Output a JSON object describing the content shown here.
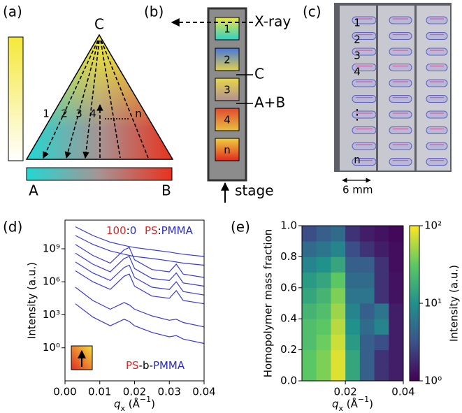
{
  "panel_a": {
    "label": "(a)",
    "vertex_top": "C",
    "vertex_left": "A",
    "vertex_right": "B",
    "paths": [
      "1",
      "2",
      "3",
      "4",
      "n"
    ]
  },
  "panel_b": {
    "label": "(b)",
    "beam": "X-ray",
    "cells": [
      "1",
      "2",
      "3",
      "4",
      "n"
    ],
    "callouts": [
      "C",
      "A+B"
    ],
    "stage": "stage"
  },
  "panel_c": {
    "label": "(c)",
    "rows": [
      "1",
      "2",
      "3",
      "4",
      "⋮",
      "n"
    ],
    "scale": "6 mm"
  },
  "chart_data": [
    {
      "type": "line",
      "label": "(d)",
      "x": [
        0.003,
        0.008,
        0.013,
        0.017,
        0.0185,
        0.02,
        0.025,
        0.03,
        0.032,
        0.034,
        0.04
      ],
      "xlim": [
        0,
        0.04
      ],
      "xticks": [
        {
          "value": 0,
          "label": "0.00"
        },
        {
          "value": 0.01,
          "label": "0.01"
        },
        {
          "value": 0.02,
          "label": "0.02"
        },
        {
          "value": 0.03,
          "label": "0.03"
        },
        {
          "value": 0.04,
          "label": "0.04"
        }
      ],
      "ylim": [
        0.001,
        400000000000
      ],
      "yticks": [
        {
          "value": 1,
          "label": "10⁰"
        },
        {
          "value": 1000,
          "label": "10³"
        },
        {
          "value": 1000000,
          "label": "10⁶"
        },
        {
          "value": 1000000000,
          "label": "10⁹"
        }
      ],
      "log_y": true,
      "ylabel": "Intensity (a.u.)",
      "xlabel": [
        "q",
        "x",
        " (Å",
        "−1",
        ")"
      ],
      "annotations": [
        [
          {
            "text": "100",
            "color": "#d62728"
          },
          {
            "text": ":",
            "color": "#000000"
          },
          {
            "text": "0",
            "color": "#2b2bd0"
          }
        ],
        [
          {
            "text": "PS",
            "color": "#d62728"
          },
          {
            "text": ":",
            "color": "#000000"
          },
          {
            "text": "PMMA",
            "color": "#2b2bd0"
          }
        ],
        [
          {
            "text": "PS",
            "color": "#d62728"
          },
          {
            "text": "-b-",
            "color": "#000000"
          },
          {
            "text": "PMMA",
            "color": "#2b2bd0"
          }
        ]
      ],
      "series": [
        {
          "color": "#3a3ad6",
          "values": [
            100000000000.0,
            16000000000.0,
            4000000000.0,
            2000000000.0,
            1600000000.0,
            1300000000.0,
            800000000.0,
            500000000.0,
            400000000.0,
            320000000.0,
            200000000.0
          ]
        },
        {
          "color": "#3a3ad6",
          "values": [
            16000000000.0,
            2500000000.0,
            630000000.0,
            320000000.0,
            250000000.0,
            200000000.0,
            130000000.0,
            80000000.0,
            63000000.0,
            50000000.0,
            32000000.0
          ]
        },
        {
          "color": "#3a3ad6",
          "values": [
            2500000000.0,
            250000000.0,
            50000000.0,
            800000000.0,
            1300000000.0,
            100000000.0,
            13000000.0,
            8000000.0,
            40000000.0,
            5000000.0,
            2500000.0
          ]
        },
        {
          "color": "#3a3ad6",
          "values": [
            400000000.0,
            40000000.0,
            8000000.0,
            130000000.0,
            200000000.0,
            16000000.0,
            2000000.0,
            1300000.0,
            6300000.0,
            800000.0,
            400000.0
          ]
        },
        {
          "color": "#3a3ad6",
          "values": [
            63000000.0,
            6300000.0,
            1300000.0,
            20000000.0,
            32000000.0,
            2500000.0,
            320000.0,
            200000.0,
            1000000.0,
            130000.0,
            63000.0
          ]
        },
        {
          "color": "#3a3ad6",
          "values": [
            10000000.0,
            1000000.0,
            200000.0,
            3200000.0,
            5000000.0,
            400000.0,
            50000.0,
            32000.0,
            160000.0,
            20000.0,
            10000.0
          ]
        },
        {
          "color": "#3a3ad6",
          "values": [
            320000.0,
            20000.0,
            3200.0,
            13000.0,
            8000.0,
            3200.0,
            800,
            320,
            400,
            200,
            80
          ]
        },
        {
          "color": "#3a3ad6",
          "values": [
            10000.0,
            630,
            100,
            400,
            250,
            100,
            25,
            10,
            13,
            6.3,
            2.5
          ]
        }
      ]
    },
    {
      "type": "heatmap",
      "label": "(e)",
      "x_edges": [
        0.005,
        0.01,
        0.015,
        0.02,
        0.025,
        0.03,
        0.035,
        0.04
      ],
      "y_edges": [
        0,
        0.1,
        0.2,
        0.3,
        0.4,
        0.5,
        0.6,
        0.7,
        0.8,
        0.9,
        1
      ],
      "z": [
        [
          30,
          40,
          80,
          15,
          4,
          2,
          1.5
        ],
        [
          30,
          40,
          80,
          15,
          4,
          2,
          1.5
        ],
        [
          25,
          35,
          70,
          12,
          4,
          3,
          1.5
        ],
        [
          25,
          30,
          60,
          10,
          5,
          8,
          1.5
        ],
        [
          20,
          25,
          50,
          8,
          4,
          6,
          1.5
        ],
        [
          15,
          20,
          40,
          6,
          6,
          2,
          1.3
        ],
        [
          12,
          15,
          30,
          5,
          5,
          2,
          1.3
        ],
        [
          8,
          10,
          15,
          4,
          4,
          2,
          1.2
        ],
        [
          5,
          6,
          8,
          3,
          2,
          1.5,
          1.2
        ],
        [
          3,
          4,
          5,
          2,
          1.5,
          1.3,
          1.1
        ]
      ],
      "xlim": [
        0.005,
        0.04
      ],
      "xticks": [
        {
          "value": 0.02,
          "label": "0.02"
        },
        {
          "value": 0.04,
          "label": "0.04"
        }
      ],
      "ylim": [
        0,
        1
      ],
      "yticks": [
        {
          "value": 0,
          "label": "0.0"
        },
        0.2,
        0.4,
        0.6,
        0.8,
        {
          "value": 1,
          "label": "1.0"
        }
      ],
      "zlim": [
        1,
        100
      ],
      "zticks": [
        {
          "value": 1,
          "label": "10⁰"
        },
        {
          "value": 10,
          "label": "10¹"
        },
        {
          "value": 100,
          "label": "10²"
        }
      ],
      "log_color": true,
      "colormap": "viridis",
      "ylabel": "Homopolymer mass fraction",
      "colorbar_label": "Intensity (a.u.)",
      "xlabel": [
        "q",
        "x",
        " (Å",
        "−1",
        ")"
      ]
    }
  ]
}
